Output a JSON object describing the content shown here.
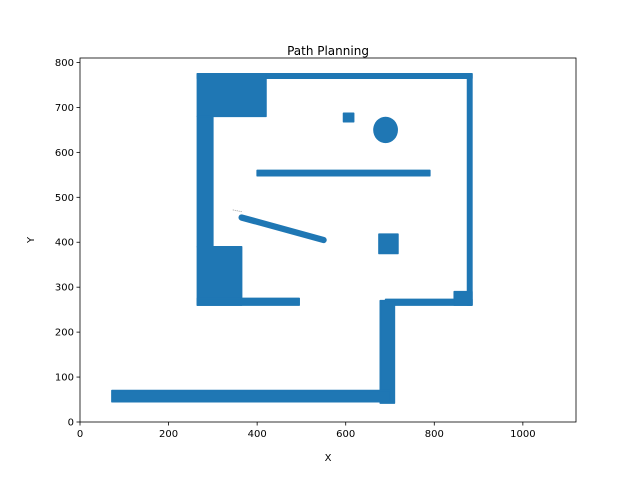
{
  "chart_data": {
    "type": "scatter",
    "title": "Path Planning",
    "xlabel": "X",
    "ylabel": "Y",
    "xlim": [
      0,
      1120
    ],
    "ylim": [
      0,
      810
    ],
    "x_ticks": [
      0,
      200,
      400,
      600,
      800,
      1000
    ],
    "y_ticks": [
      0,
      100,
      200,
      300,
      400,
      500,
      600,
      700,
      800
    ],
    "grid": false,
    "series_color": "#1f77b4",
    "obstacles": [
      {
        "shape": "rect",
        "label": "top-wall",
        "x": [
          265,
          885
        ],
        "y": [
          765,
          775
        ]
      },
      {
        "shape": "rect",
        "label": "right-wall",
        "x": [
          875,
          885
        ],
        "y": [
          260,
          775
        ]
      },
      {
        "shape": "rect",
        "label": "top-left-block",
        "x": [
          265,
          420
        ],
        "y": [
          680,
          775
        ]
      },
      {
        "shape": "rect",
        "label": "left-wall-upper",
        "x": [
          265,
          300
        ],
        "y": [
          390,
          680
        ]
      },
      {
        "shape": "rect",
        "label": "left-block-lower",
        "x": [
          265,
          365
        ],
        "y": [
          260,
          390
        ]
      },
      {
        "shape": "rect",
        "label": "lower-shelf",
        "x": [
          265,
          495
        ],
        "y": [
          260,
          275
        ]
      },
      {
        "shape": "rect",
        "label": "small-square",
        "x": [
          595,
          618
        ],
        "y": [
          668,
          687
        ]
      },
      {
        "shape": "circle",
        "label": "round-obstacle",
        "cx": 690,
        "cy": 650,
        "r": 28
      },
      {
        "shape": "rect",
        "label": "middle-bar",
        "x": [
          400,
          790
        ],
        "y": [
          548,
          560
        ]
      },
      {
        "shape": "line",
        "label": "diagonal-bar",
        "x1": 365,
        "y1": 455,
        "x2": 550,
        "y2": 405,
        "thickness": 14
      },
      {
        "shape": "rect",
        "label": "mid-square",
        "x": [
          675,
          718
        ],
        "y": [
          375,
          418
        ]
      },
      {
        "shape": "rect",
        "label": "right-ledge",
        "x": [
          690,
          885
        ],
        "y": [
          260,
          273
        ]
      },
      {
        "shape": "rect",
        "label": "right-step",
        "x": [
          845,
          885
        ],
        "y": [
          260,
          290
        ]
      },
      {
        "shape": "rect",
        "label": "vertical-corridor",
        "x": [
          678,
          710
        ],
        "y": [
          42,
          270
        ]
      },
      {
        "shape": "rect",
        "label": "bottom-corridor",
        "x": [
          72,
          700
        ],
        "y": [
          45,
          70
        ]
      }
    ],
    "path": [
      [
        345,
        472
      ],
      [
        365,
        468
      ]
    ]
  }
}
